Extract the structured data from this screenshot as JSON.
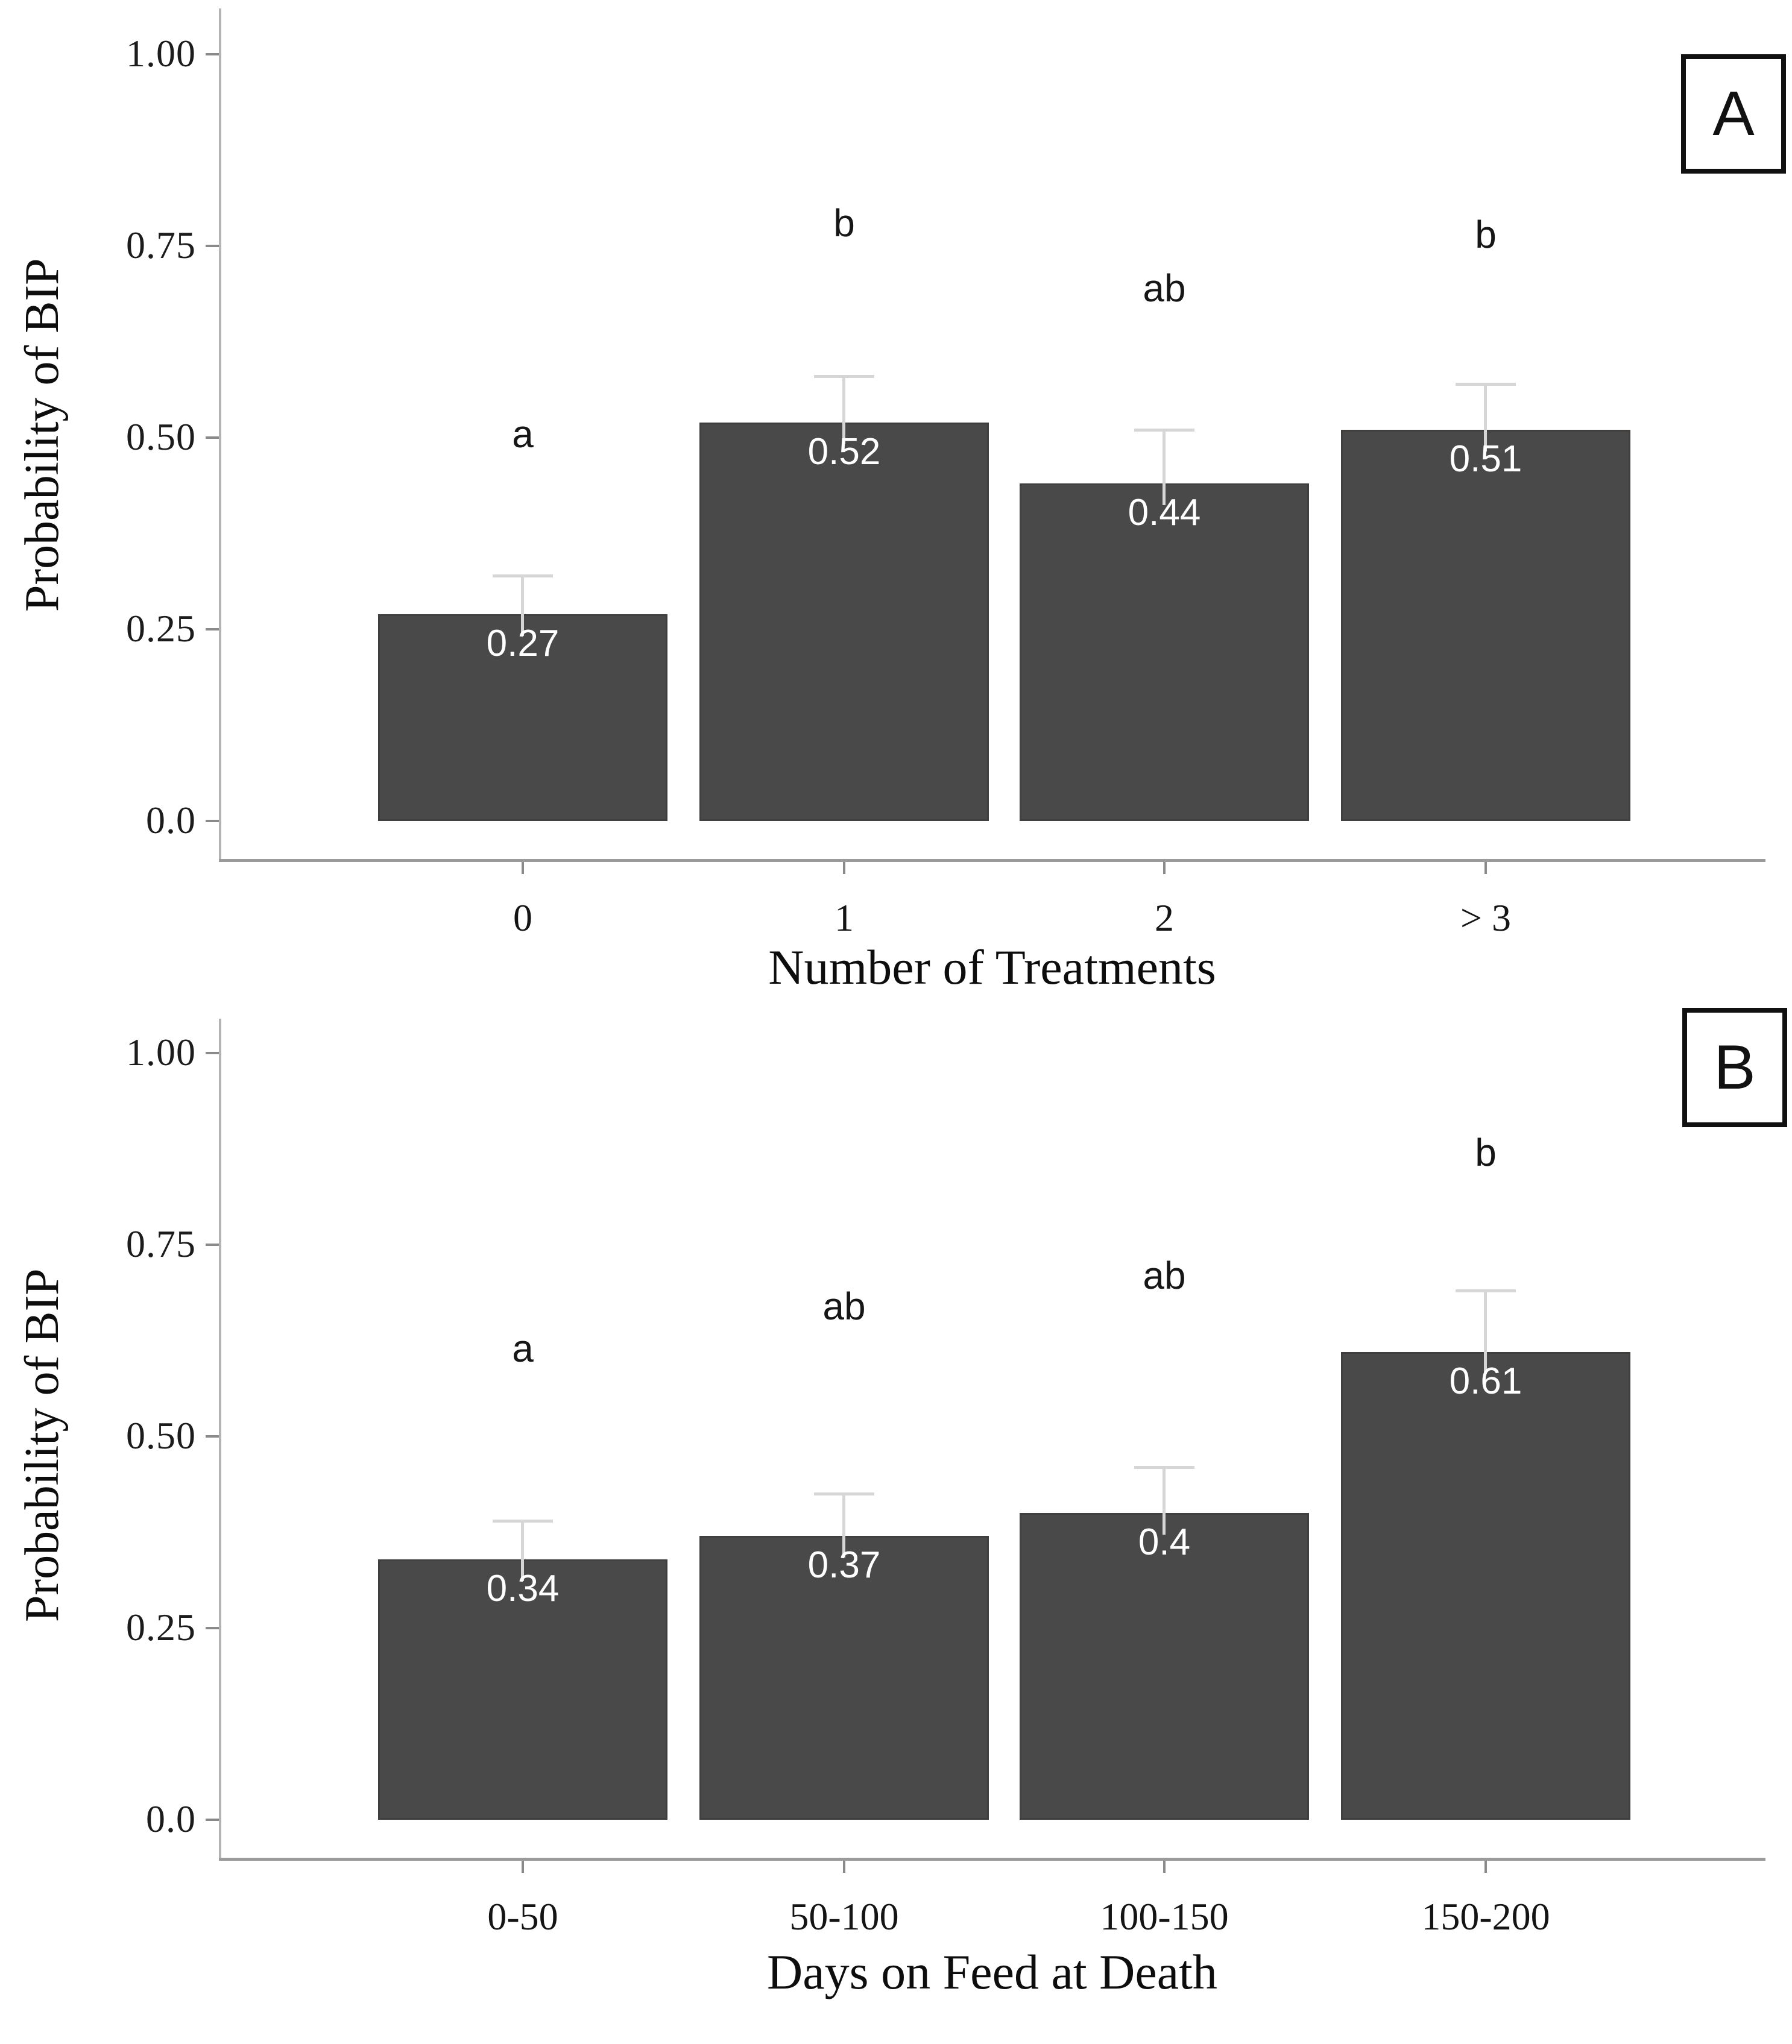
{
  "figure": {
    "background": "#ffffff",
    "ylabel_shared": "Probability of BIP"
  },
  "chart_data": [
    {
      "type": "bar",
      "panel_tag": "A",
      "title": "",
      "ylabel": "Probability of BIP",
      "xlabel": "Number of Treatments",
      "categories": [
        "0",
        "1",
        "2",
        "> 3"
      ],
      "values": [
        0.27,
        0.52,
        0.44,
        0.51
      ],
      "value_labels": [
        "0.27",
        "0.52",
        "0.44",
        "0.51"
      ],
      "sig_letters": [
        "a",
        "b",
        "ab",
        "b"
      ],
      "error_upper": [
        0.32,
        0.58,
        0.51,
        0.57
      ],
      "sig_letter_y": [
        0.505,
        0.78,
        0.695,
        0.765
      ],
      "ylim": [
        0,
        1.05
      ],
      "yticks": [
        1.0,
        0.75,
        0.5,
        0.25,
        0.0
      ],
      "ytick_labels": [
        "1.00",
        "0.75",
        "0.50",
        "0.25",
        "0.0"
      ],
      "grid": false,
      "legend": "none",
      "bar_color": "#4a4949",
      "error_bar_color": "#d6d6d6",
      "value_label_color": "#ffffff"
    },
    {
      "type": "bar",
      "panel_tag": "B",
      "title": "",
      "ylabel": "Probability of BIP",
      "xlabel": "Days on Feed at Death",
      "categories": [
        "0-50",
        "50-100",
        "100-150",
        "150-200"
      ],
      "values": [
        0.34,
        0.37,
        0.4,
        0.61
      ],
      "value_labels": [
        "0.34",
        "0.37",
        "0.4",
        "0.61"
      ],
      "sig_letters": [
        "a",
        "ab",
        "ab",
        "b"
      ],
      "error_upper": [
        0.39,
        0.425,
        0.46,
        0.69
      ],
      "sig_letter_y": [
        0.615,
        0.67,
        0.71,
        0.87
      ],
      "ylim": [
        0,
        1.05
      ],
      "yticks": [
        1.0,
        0.75,
        0.5,
        0.25,
        0.0
      ],
      "ytick_labels": [
        "1.00",
        "0.75",
        "0.50",
        "0.25",
        "0.0"
      ],
      "grid": false,
      "legend": "none",
      "bar_color": "#4a4949",
      "error_bar_color": "#d6d6d6",
      "value_label_color": "#ffffff"
    }
  ]
}
